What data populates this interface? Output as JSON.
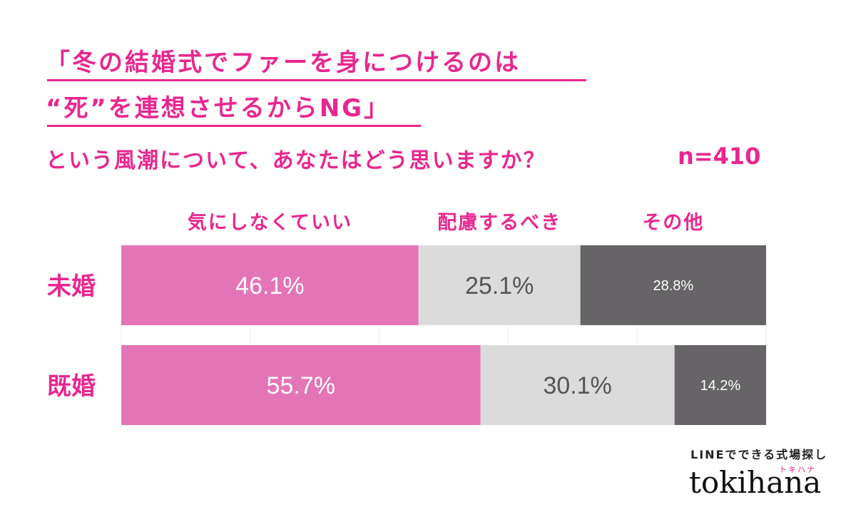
{
  "title": {
    "line1": "「冬の結婚式でファーを身につけるのは",
    "line2": "“死”を連想させるからNG」",
    "question": "という風潮について、あなたはどう思いますか？",
    "sample_size": "n=410"
  },
  "brand": {
    "tagline": "LINEでできる式場探し",
    "kana": "トキハナ",
    "name": "tokihana"
  },
  "colors": {
    "accent": "#e8278f",
    "series": [
      "#e374b6",
      "#dcdbdc",
      "#666466"
    ]
  },
  "chart_data": {
    "type": "bar",
    "orientation": "horizontal-stacked-100",
    "categories": [
      "未婚",
      "既婚"
    ],
    "series": [
      {
        "name": "気にしなくていい",
        "values": [
          46.1,
          55.7
        ],
        "labels": [
          "46.1%",
          "55.7%"
        ]
      },
      {
        "name": "配慮するべき",
        "values": [
          25.1,
          30.1
        ],
        "labels": [
          "25.1%",
          "30.1%"
        ]
      },
      {
        "name": "その他",
        "values": [
          28.8,
          14.2
        ],
        "labels": [
          "28.8%",
          "14.2%"
        ]
      }
    ],
    "xlim": [
      0,
      100
    ],
    "legend_position": "top"
  }
}
